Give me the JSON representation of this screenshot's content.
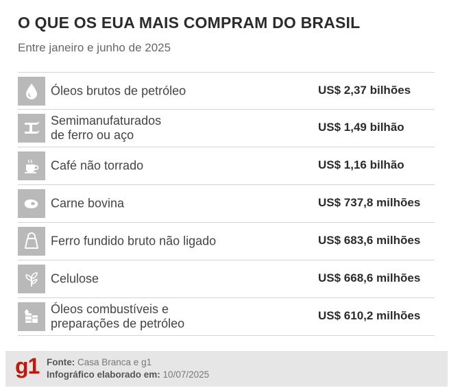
{
  "header": {
    "title": "O QUE OS EUA MAIS COMPRAM DO BRASIL",
    "subtitle": "Entre janeiro e junho de 2025"
  },
  "items": [
    {
      "icon": "oil-drop-icon",
      "label_lines": [
        "Óleos brutos de petróleo"
      ],
      "value": "US$ 2,37 bilhões"
    },
    {
      "icon": "steel-beam-icon",
      "label_lines": [
        "Semimanufaturados",
        "de ferro ou aço"
      ],
      "value": "US$ 1,49 bilhão"
    },
    {
      "icon": "coffee-cup-icon",
      "label_lines": [
        "Café não torrado"
      ],
      "value": "US$ 1,16 bilhão"
    },
    {
      "icon": "meat-steak-icon",
      "label_lines": [
        "Carne bovina"
      ],
      "value": "US$ 737,8 milhões"
    },
    {
      "icon": "iron-weight-icon",
      "label_lines": [
        "Ferro fundido bruto não ligado"
      ],
      "value": "US$ 683,6 milhões"
    },
    {
      "icon": "plant-leaves-icon",
      "label_lines": [
        "Celulose"
      ],
      "value": "US$ 668,6 milhões"
    },
    {
      "icon": "fuel-barrels-icon",
      "label_lines": [
        "Óleos combustíveis e",
        "preparações de petróleo"
      ],
      "value": "US$ 610,2 milhões"
    }
  ],
  "chart_data": {
    "type": "table",
    "title": "O QUE OS EUA MAIS COMPRAM DO BRASIL",
    "subtitle": "Entre janeiro e junho de 2025",
    "categories": [
      "Óleos brutos de petróleo",
      "Semimanufaturados de ferro ou aço",
      "Café não torrado",
      "Carne bovina",
      "Ferro fundido bruto não ligado",
      "Celulose",
      "Óleos combustíveis e preparações de petróleo"
    ],
    "values": [
      2370,
      1490,
      1160,
      737.8,
      683.6,
      668.6,
      610.2
    ],
    "value_labels": [
      "US$ 2,37 bilhões",
      "US$ 1,49 bilhão",
      "US$ 1,16 bilhão",
      "US$ 737,8 milhões",
      "US$ 683,6 milhões",
      "US$ 668,6 milhões",
      "US$ 610,2 milhões"
    ]
  },
  "footer": {
    "logo": "g1",
    "source_label": "Fonte:",
    "source_value": "Casa Branca e g1",
    "made_label": "Infográfico elaborado em:",
    "made_value": "10/07/2025"
  },
  "colors": {
    "icon_box": "#b9b9b9",
    "icon_fg": "#ffffff",
    "footer_bg": "#e6e6e6",
    "brand": "#c4170c"
  }
}
